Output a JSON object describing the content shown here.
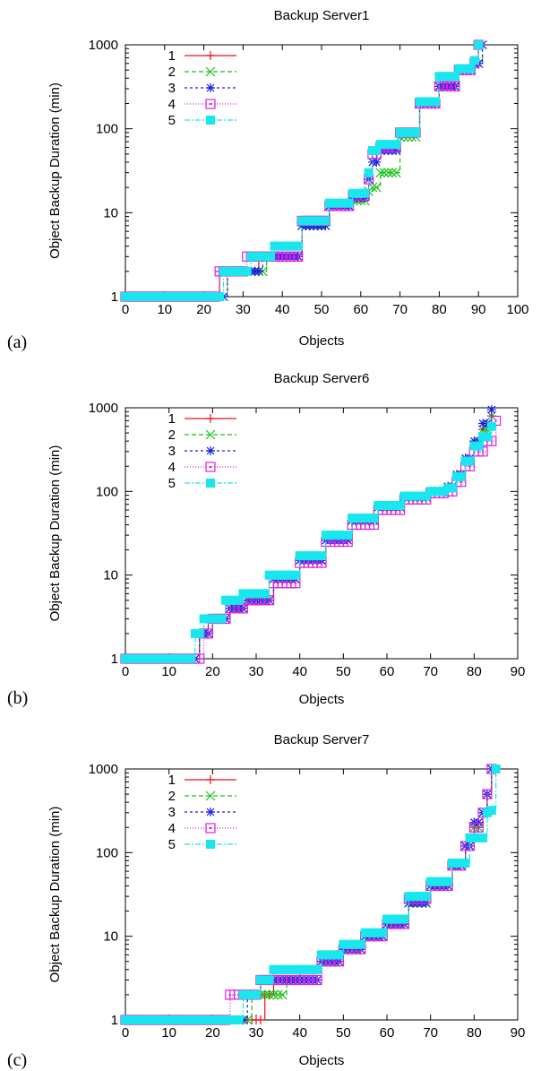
{
  "chart_data": [
    {
      "panel": "(a)",
      "type": "line",
      "title": "Backup Server1",
      "xlabel": "Objects",
      "ylabel": "Object Backup Duration (min)",
      "xlim": [
        0,
        100
      ],
      "ylim": [
        1,
        1000
      ],
      "yscale": "log",
      "xticks": [
        "0",
        "10",
        "20",
        "30",
        "40",
        "50",
        "60",
        "70",
        "80",
        "90",
        "100"
      ],
      "yticks": [
        "1",
        "10",
        "100",
        "1000"
      ],
      "legend_position": "top-left",
      "series": [
        {
          "name": "1",
          "color": "#e8101a",
          "marker": "plus",
          "dash": "none",
          "x": [
            0,
            23,
            24,
            33,
            34,
            38,
            45,
            52,
            58,
            62,
            63,
            65,
            70,
            75,
            80,
            85,
            89,
            90
          ],
          "y": [
            1,
            1,
            2,
            2,
            3,
            3,
            7,
            12,
            15,
            25,
            50,
            60,
            90,
            200,
            320,
            500,
            600,
            1000
          ]
        },
        {
          "name": "2",
          "color": "#17c317",
          "marker": "x",
          "dash": "5,3",
          "x": [
            0,
            25,
            26,
            34,
            36,
            38,
            45,
            52,
            58,
            62,
            63,
            65,
            70,
            75,
            80,
            85,
            89,
            91
          ],
          "y": [
            1,
            1,
            2,
            2,
            3,
            3,
            7,
            12,
            14,
            18,
            20,
            30,
            80,
            200,
            320,
            500,
            600,
            1000
          ]
        },
        {
          "name": "3",
          "color": "#1a1ae0",
          "marker": "star",
          "dash": "3,3",
          "x": [
            0,
            25,
            26,
            33,
            35,
            37,
            45,
            52,
            58,
            62,
            63,
            65,
            70,
            75,
            80,
            85,
            89,
            91
          ],
          "y": [
            1,
            1,
            2,
            2,
            3,
            3,
            7,
            12,
            15,
            25,
            40,
            55,
            90,
            200,
            320,
            500,
            600,
            1000
          ]
        },
        {
          "name": "4",
          "color": "#e020e0",
          "marker": "square-open",
          "dash": "1,2",
          "x": [
            0,
            23,
            24,
            30,
            31,
            38,
            45,
            52,
            58,
            62,
            63,
            65,
            70,
            75,
            80,
            85,
            89,
            90
          ],
          "y": [
            1,
            1,
            2,
            2,
            3,
            3,
            8,
            12,
            16,
            25,
            50,
            60,
            90,
            200,
            320,
            500,
            600,
            1000
          ]
        },
        {
          "name": "5",
          "color": "#18e8ee",
          "marker": "square-filled",
          "dash": "6,2,2,2",
          "x": [
            0,
            24,
            25,
            31,
            32,
            38,
            45,
            52,
            58,
            62,
            63,
            65,
            70,
            75,
            80,
            85,
            89,
            90
          ],
          "y": [
            1,
            1,
            2,
            2,
            3,
            4,
            8,
            13,
            17,
            30,
            55,
            65,
            90,
            210,
            420,
            520,
            650,
            1000
          ]
        }
      ]
    },
    {
      "panel": "(b)",
      "type": "line",
      "title": "Backup Server6",
      "xlabel": "Objects",
      "ylabel": "Object Backup Duration (min)",
      "xlim": [
        0,
        90
      ],
      "ylim": [
        1,
        1000
      ],
      "yscale": "log",
      "xticks": [
        "0",
        "10",
        "20",
        "30",
        "40",
        "50",
        "60",
        "70",
        "80",
        "90"
      ],
      "yticks": [
        "1",
        "10",
        "100",
        "1000"
      ],
      "legend_position": "top-left",
      "series": [
        {
          "name": "1",
          "color": "#e8101a",
          "marker": "plus",
          "dash": "none",
          "x": [
            0,
            16,
            17,
            18,
            19,
            22,
            24,
            28,
            34,
            40,
            46,
            52,
            58,
            64,
            70,
            74,
            76,
            78,
            80,
            82,
            84
          ],
          "y": [
            1,
            1,
            2,
            2,
            3,
            3,
            4,
            5,
            9,
            15,
            27,
            45,
            65,
            85,
            100,
            110,
            150,
            230,
            350,
            550,
            800
          ]
        },
        {
          "name": "2",
          "color": "#17c317",
          "marker": "x",
          "dash": "5,3",
          "x": [
            0,
            16,
            17,
            19,
            20,
            22,
            24,
            28,
            34,
            40,
            46,
            52,
            58,
            64,
            70,
            74,
            76,
            78,
            80,
            82,
            84
          ],
          "y": [
            1,
            1,
            2,
            2,
            3,
            3,
            4,
            5,
            9,
            15,
            30,
            45,
            65,
            85,
            100,
            110,
            150,
            230,
            350,
            550,
            800
          ]
        },
        {
          "name": "3",
          "color": "#1a1ae0",
          "marker": "star",
          "dash": "3,3",
          "x": [
            0,
            16,
            17,
            19,
            20,
            22,
            24,
            28,
            34,
            40,
            46,
            52,
            58,
            64,
            70,
            74,
            76,
            78,
            80,
            82,
            84
          ],
          "y": [
            1,
            1,
            2,
            2,
            3,
            3,
            4,
            5,
            9,
            15,
            26,
            45,
            65,
            85,
            100,
            115,
            160,
            250,
            400,
            650,
            950
          ]
        },
        {
          "name": "4",
          "color": "#e020e0",
          "marker": "square-open",
          "dash": "1,2",
          "x": [
            0,
            17,
            18,
            19,
            20,
            22,
            24,
            28,
            34,
            40,
            46,
            52,
            58,
            64,
            70,
            74,
            76,
            78,
            80,
            83,
            85
          ],
          "y": [
            1,
            1,
            2,
            2,
            3,
            3,
            4,
            5,
            8,
            14,
            25,
            40,
            60,
            80,
            95,
            100,
            130,
            200,
            300,
            400,
            700
          ]
        },
        {
          "name": "5",
          "color": "#18e8ee",
          "marker": "square-filled",
          "dash": "6,2,2,2",
          "x": [
            0,
            15,
            16,
            17,
            18,
            21,
            23,
            27,
            33,
            40,
            46,
            52,
            58,
            64,
            70,
            74,
            76,
            78,
            80,
            82,
            84
          ],
          "y": [
            1,
            1,
            2,
            2,
            3,
            3,
            5,
            6,
            10,
            17,
            30,
            48,
            68,
            88,
            100,
            110,
            150,
            230,
            350,
            450,
            600
          ]
        }
      ]
    },
    {
      "panel": "(c)",
      "type": "line",
      "title": "Backup Server7",
      "xlabel": "Objects",
      "ylabel": "Object Backup Duration (min)",
      "xlim": [
        0,
        90
      ],
      "ylim": [
        1,
        1000
      ],
      "yscale": "log",
      "xticks": [
        "0",
        "10",
        "20",
        "30",
        "40",
        "50",
        "60",
        "70",
        "80",
        "90"
      ],
      "yticks": [
        "1",
        "10",
        "100",
        "1000"
      ],
      "legend_position": "top-left",
      "series": [
        {
          "name": "1",
          "color": "#e8101a",
          "marker": "plus",
          "dash": "none",
          "x": [
            0,
            31,
            32,
            34,
            37,
            40,
            45,
            50,
            55,
            60,
            65,
            70,
            75,
            78,
            80,
            82,
            83,
            84
          ],
          "y": [
            1,
            1,
            2,
            3,
            3,
            4,
            5,
            7,
            10,
            14,
            25,
            40,
            70,
            120,
            200,
            300,
            500,
            1000
          ]
        },
        {
          "name": "2",
          "color": "#17c317",
          "marker": "x",
          "dash": "5,3",
          "x": [
            0,
            28,
            29,
            36,
            37,
            40,
            45,
            50,
            55,
            60,
            65,
            70,
            75,
            78,
            80,
            82,
            83,
            84
          ],
          "y": [
            1,
            1,
            2,
            2,
            3,
            4,
            5,
            7,
            10,
            14,
            25,
            40,
            70,
            120,
            200,
            300,
            500,
            1000
          ]
        },
        {
          "name": "3",
          "color": "#1a1ae0",
          "marker": "star",
          "dash": "3,3",
          "x": [
            0,
            27,
            28,
            30,
            31,
            40,
            45,
            50,
            55,
            60,
            65,
            70,
            75,
            78,
            80,
            82,
            83,
            84
          ],
          "y": [
            1,
            1,
            2,
            2,
            3,
            3,
            5,
            7,
            10,
            14,
            25,
            40,
            70,
            120,
            230,
            300,
            500,
            1000
          ]
        },
        {
          "name": "4",
          "color": "#e020e0",
          "marker": "square-open",
          "dash": "1,2",
          "x": [
            0,
            23,
            24,
            30,
            31,
            38,
            45,
            50,
            55,
            60,
            65,
            70,
            75,
            78,
            80,
            82,
            83,
            84
          ],
          "y": [
            1,
            1,
            2,
            2,
            3,
            3,
            5,
            7,
            10,
            14,
            28,
            40,
            70,
            120,
            200,
            300,
            500,
            1000
          ]
        },
        {
          "name": "5",
          "color": "#18e8ee",
          "marker": "square-filled",
          "dash": "6,2,2,2",
          "x": [
            0,
            26,
            27,
            30,
            31,
            34,
            45,
            50,
            55,
            60,
            65,
            70,
            75,
            79,
            80,
            83,
            84,
            85
          ],
          "y": [
            1,
            1,
            2,
            2,
            3,
            4,
            6,
            8,
            11,
            16,
            30,
            45,
            75,
            150,
            150,
            300,
            320,
            1000
          ]
        }
      ]
    }
  ]
}
